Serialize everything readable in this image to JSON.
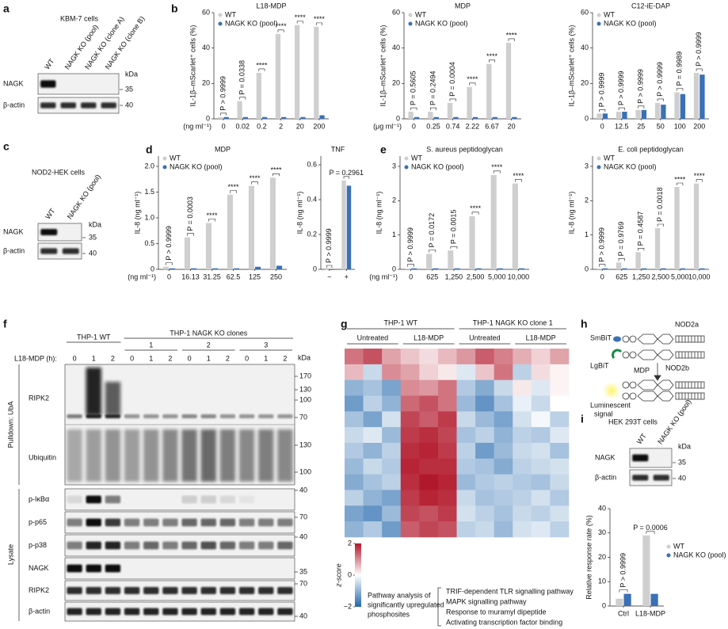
{
  "panel_letters": [
    "a",
    "b",
    "c",
    "d",
    "e",
    "f",
    "g",
    "h",
    "i"
  ],
  "chart_data": [
    {
      "type": "bar",
      "title": "L18-MDP",
      "y_label": "IL-1β–mScarlet⁺ cells (%)",
      "x_label": "(ng ml⁻¹)",
      "categories": [
        "0",
        "0.02",
        "0.2",
        "2",
        "20",
        "200"
      ],
      "ylim": [
        0,
        60
      ],
      "yticks": [
        0,
        20,
        40,
        60
      ],
      "legend": "upper left",
      "series": [
        {
          "name": "WT",
          "color": "#cfcfcf",
          "values": [
            1,
            10,
            26,
            48,
            53,
            52
          ]
        },
        {
          "name": "NAGK KO (pool)",
          "color": "#3a70b5",
          "values": [
            1,
            1,
            1,
            1,
            1,
            2
          ]
        }
      ],
      "annotations": [
        "P > 0.9999",
        "P = 0.0338",
        "****",
        "****",
        "****",
        "****"
      ]
    },
    {
      "type": "bar",
      "title": "MDP",
      "y_label": "IL-1β–mScarlet⁺ cells (%)",
      "x_label": "(μg ml⁻¹)",
      "categories": [
        "0",
        "0.25",
        "0.74",
        "2.22",
        "6.67",
        "20"
      ],
      "ylim": [
        0,
        60
      ],
      "yticks": [
        0,
        20,
        40,
        60
      ],
      "legend": "upper left",
      "series": [
        {
          "name": "WT",
          "color": "#cfcfcf",
          "values": [
            4,
            4,
            9,
            18,
            31,
            43
          ]
        },
        {
          "name": "NAGK KO (pool)",
          "color": "#3a70b5",
          "values": [
            1,
            1,
            1,
            1,
            1,
            1
          ]
        }
      ],
      "annotations": [
        "P = 0.5605",
        "P = 0.2494",
        "P = 0.0004",
        "****",
        "****",
        "****"
      ]
    },
    {
      "type": "bar",
      "title": "C12-iE-DAP",
      "y_label": "IL-1β–mScarlet⁺ cells (%)",
      "categories": [
        "0",
        "12.5",
        "25",
        "50",
        "100",
        "200"
      ],
      "ylim": [
        0,
        60
      ],
      "yticks": [
        0,
        20,
        40,
        60
      ],
      "legend": "upper left",
      "series": [
        {
          "name": "WT",
          "color": "#cfcfcf",
          "values": [
            3,
            4,
            5,
            9,
            15,
            26
          ]
        },
        {
          "name": "NAGK KO (pool)",
          "color": "#3a70b5",
          "values": [
            3,
            4,
            5,
            8,
            14,
            25
          ]
        }
      ],
      "annotations": [
        "P > 0.9999",
        "P > 0.9999",
        "P > 0.9999",
        "P > 0.9999",
        "P = 0.9989",
        "P > 0.9999"
      ]
    },
    {
      "type": "bar",
      "title": "MDP",
      "y_label": "IL-8 (ng ml⁻¹)",
      "x_label": "(ng ml⁻¹)",
      "categories": [
        "0",
        "16.13",
        "31.25",
        "62.5",
        "125",
        "250"
      ],
      "ylim": [
        0,
        2.2
      ],
      "yticks": [
        0,
        0.5,
        {
          "value": 1,
          "label": "1.0"
        },
        1.5,
        {
          "value": 2,
          "label": "2.0"
        }
      ],
      "legend": "upper left",
      "series": [
        {
          "name": "WT",
          "color": "#cfcfcf",
          "values": [
            0.05,
            0.62,
            0.9,
            1.45,
            1.62,
            1.78
          ]
        },
        {
          "name": "NAGK KO (pool)",
          "color": "#3a70b5",
          "values": [
            0.02,
            0.02,
            0.02,
            0.02,
            0.05,
            0.07
          ]
        }
      ],
      "annotations": [
        "P > 0.9999",
        "P = 0.0003",
        "****",
        "****",
        "****",
        "****"
      ]
    },
    {
      "type": "bar",
      "title": "TNF",
      "y_label": "IL-8 (ng ml⁻¹)",
      "categories": [
        "−",
        "+"
      ],
      "ylim": [
        0,
        0.65
      ],
      "yticks": [
        0,
        0.2,
        0.4,
        0.6
      ],
      "series": [
        {
          "color": "#cfcfcf",
          "values": [
            0,
            0.51
          ]
        },
        {
          "color": "#3a70b5",
          "values": [
            0,
            0.48
          ]
        }
      ],
      "annotations": [
        "P > 0.9999",
        "P = 0.2961"
      ]
    },
    {
      "type": "bar",
      "title": "S. aureus peptidoglycan",
      "y_label": "IL-8 (ng ml⁻¹)",
      "x_label": "(ng ml⁻¹)",
      "categories": [
        "0",
        "625",
        "1,250",
        "2,500",
        "5,000",
        "10,000"
      ],
      "ylim": [
        0,
        3.3
      ],
      "yticks": [
        0,
        1,
        2,
        3
      ],
      "legend": "upper left",
      "series": [
        {
          "name": "WT",
          "color": "#cfcfcf",
          "values": [
            0.02,
            0.45,
            0.55,
            1.55,
            2.75,
            2.5
          ]
        },
        {
          "name": "NAGK KO (pool)",
          "color": "#3a70b5",
          "values": [
            0.03,
            0.03,
            0.03,
            0.03,
            0.03,
            0.03
          ]
        }
      ],
      "annotations": [
        "P > 0.9999",
        "P = 0.0172",
        "P = 0.0015",
        "****",
        "****",
        "****"
      ]
    },
    {
      "type": "bar",
      "title": "E. coli peptidoglycan",
      "y_label": "IL-8 (ng ml⁻¹)",
      "categories": [
        "0",
        "625",
        "1,250",
        "2,500",
        "5,000",
        "10,000"
      ],
      "ylim": [
        0,
        3.3
      ],
      "yticks": [
        0,
        1,
        2,
        3
      ],
      "legend": "upper left",
      "series": [
        {
          "name": "WT",
          "color": "#cfcfcf",
          "values": [
            0.02,
            0.2,
            0.5,
            1.2,
            2.4,
            2.5
          ]
        },
        {
          "name": "NAGK KO (pool)",
          "color": "#3a70b5",
          "values": [
            0.03,
            0.03,
            0.03,
            0.03,
            0.03,
            0.03
          ]
        }
      ],
      "annotations": [
        "P > 0.9999",
        "P = 0.9769",
        "P = 0.4587",
        "P = 0.0018",
        "****",
        "****"
      ]
    },
    {
      "type": "bar",
      "y_label": "Relative response rate (%)",
      "categories": [
        "Ctrl",
        "L18-MDP"
      ],
      "ylim": [
        0,
        40
      ],
      "yticks": [
        0,
        10,
        20,
        30,
        40
      ],
      "legend": "right",
      "series": [
        {
          "name": "WT",
          "color": "#cfcfcf",
          "values": [
            3,
            29
          ]
        },
        {
          "name": "NAGK KO (pool)",
          "color": "#3a70b5",
          "values": [
            5,
            5
          ]
        }
      ],
      "annotations": [
        "P > 0.9999",
        "P = 0.0006"
      ]
    },
    {
      "type": "heatmap",
      "groups": [
        "THP-1 WT",
        "THP-1 NAGK KO clone 1"
      ],
      "conditions": [
        "Untreated",
        "L18-MDP",
        "Untreated",
        "L18-MDP"
      ],
      "zlim": [
        -2,
        2
      ],
      "zticks": [
        2,
        0,
        {
          "value": -2,
          "label": "−2"
        }
      ],
      "z_label": "z-score",
      "values": [
        [
          1.2,
          1.5,
          0.8,
          0.5,
          0.3,
          0.6,
          0.9,
          1.4,
          1.1,
          0.7,
          0.4,
          0.8
        ],
        [
          0.6,
          -0.5,
          1.0,
          0.8,
          0.4,
          0.2,
          -0.3,
          0.5,
          1.2,
          -0.6,
          0.3,
          0.1
        ],
        [
          -1.0,
          -0.8,
          -1.2,
          1.0,
          0.9,
          1.2,
          -0.7,
          -1.1,
          -0.5,
          0.2,
          -0.3,
          0.1
        ],
        [
          -1.3,
          -0.6,
          -1.0,
          1.3,
          1.5,
          1.2,
          -0.9,
          -1.4,
          -0.8,
          -0.2,
          -0.5,
          0.0
        ],
        [
          -0.8,
          -1.2,
          -0.4,
          1.6,
          1.4,
          1.7,
          -0.5,
          -0.9,
          -1.2,
          -0.4,
          -0.1,
          -0.6
        ],
        [
          -0.5,
          -0.3,
          -0.9,
          1.7,
          1.8,
          1.6,
          -0.8,
          -0.6,
          -1.0,
          -0.6,
          -0.7,
          -0.3
        ],
        [
          -0.7,
          -1.0,
          -0.6,
          1.8,
          1.9,
          1.7,
          -0.6,
          -1.3,
          -0.9,
          -0.5,
          -0.4,
          -0.8
        ],
        [
          -0.9,
          -0.5,
          -0.7,
          1.9,
          1.8,
          1.8,
          -0.7,
          -0.8,
          -1.1,
          -0.6,
          -0.5,
          -0.4
        ],
        [
          -1.1,
          -0.8,
          -0.6,
          1.8,
          2.0,
          1.9,
          -0.9,
          -0.7,
          -0.6,
          -0.7,
          -0.8,
          -0.5
        ],
        [
          -0.6,
          -1.0,
          -1.2,
          1.7,
          1.9,
          1.8,
          -0.5,
          -0.8,
          -0.7,
          -0.6,
          -0.4,
          -0.7
        ],
        [
          -1.2,
          -1.4,
          -0.9,
          1.6,
          1.5,
          1.7,
          -0.4,
          -0.6,
          -0.8,
          -0.5,
          -0.6,
          -0.4
        ],
        [
          -1.0,
          -0.7,
          -1.3,
          1.4,
          1.6,
          1.5,
          -0.6,
          -0.5,
          -0.9,
          -0.4,
          -0.3,
          -0.6
        ]
      ]
    }
  ],
  "blot_a": {
    "title": "KBM-7 cells",
    "lanes": [
      "WT",
      "NAGK KO (pool)",
      "NAGK KO (clone A)",
      "NAGK KO (clone B)"
    ],
    "rows": [
      "NAGK",
      "β-actin"
    ],
    "kda_label": "kDa",
    "markers": [
      35,
      40
    ]
  },
  "blot_c": {
    "title": "NOD2-HEK cells",
    "lanes": [
      "WT",
      "NAGK KO (pool)"
    ],
    "rows": [
      "NAGK",
      "β-actin"
    ],
    "kda_label": "kDa",
    "markers": [
      35,
      40
    ]
  },
  "blot_i": {
    "title": "HEK 293T cells",
    "lanes": [
      "WT",
      "NAGK KO (pool)"
    ],
    "rows": [
      "NAGK",
      "β-actin"
    ],
    "kda_label": "kDa",
    "markers": [
      35,
      40
    ]
  },
  "blot_f": {
    "wt_header": "THP-1 WT",
    "ko_header": "THP-1 NAGK KO clones",
    "clones": [
      1,
      2,
      3
    ],
    "time_label": "L18-MDP (h):",
    "times": [
      0,
      1,
      2
    ],
    "sections": [
      "Pulldown: UbA",
      "Lysate"
    ],
    "pulldown_rows": [
      "RIPK2",
      "Ubiquitin"
    ],
    "lysate_rows": [
      "p-IκBα",
      "p-p65",
      "p-p38",
      "NAGK",
      "RIPK2",
      "β-actin"
    ],
    "kda_label": "kDa",
    "pulldown_markers": [
      170,
      130,
      100,
      70,
      130,
      100
    ],
    "lysate_markers": [
      40,
      70,
      40,
      35,
      70,
      40
    ]
  },
  "diagram_h": {
    "smbit": "SmBiT",
    "nod2a": "NOD2a",
    "lgbit": "LgBiT",
    "nod2b": "NOD2b",
    "mdp": "MDP",
    "signal": [
      "Luminescent",
      "signal"
    ]
  },
  "pathways": {
    "heading": [
      "Pathway analysis of",
      "significantly upregulated",
      "phosphosites"
    ],
    "items": [
      "TRIF-dependent TLR signalling pathway",
      "MAPK signalling pathway",
      "Response to muramyl dipeptide",
      "Activating transcription factor binding"
    ]
  }
}
